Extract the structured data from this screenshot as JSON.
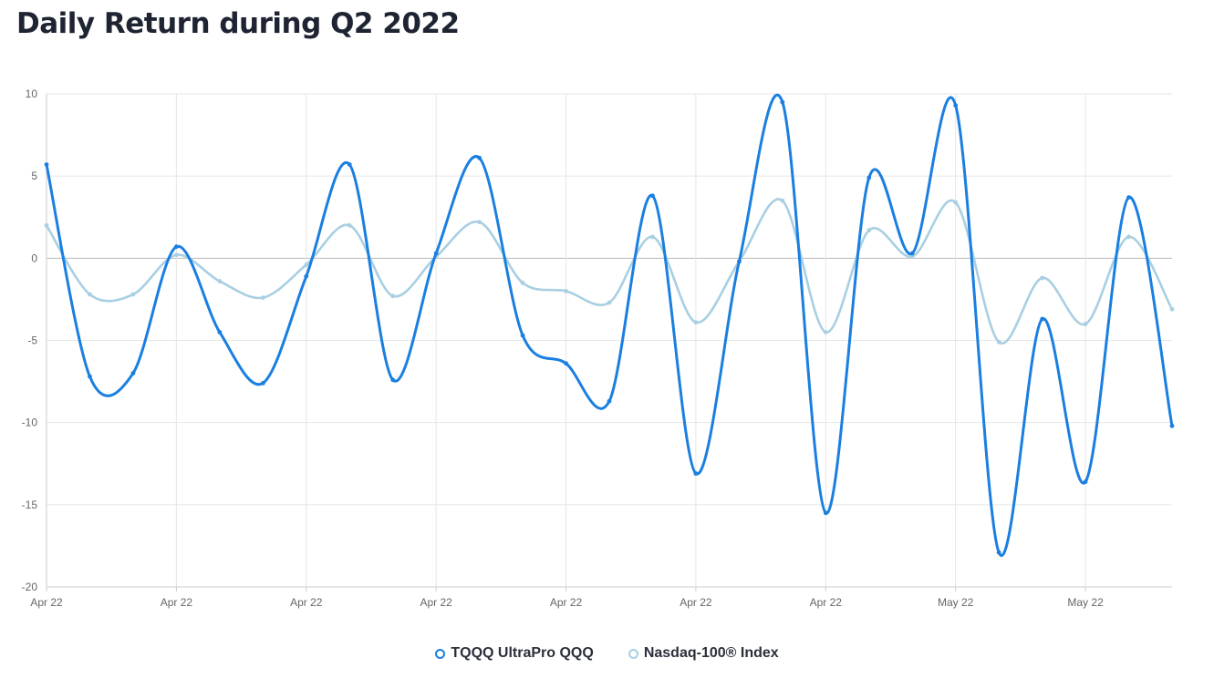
{
  "page": {
    "title": "Daily Return during Q2 2022"
  },
  "legend": {
    "items": [
      {
        "label": "TQQQ UltraPro QQQ",
        "color": "#1a7fe0"
      },
      {
        "label": "Nasdaq-100® Index",
        "color": "#a8cfe2"
      }
    ]
  },
  "chart_data": {
    "type": "line",
    "title": "Daily Return during Q2 2022",
    "xlabel": "",
    "ylabel": "",
    "ylim": [
      -20,
      10
    ],
    "yticks": [
      10,
      5,
      0,
      -5,
      -10,
      -15,
      -20
    ],
    "x_tick_labels": [
      "Apr 22",
      "Apr 22",
      "Apr 22",
      "Apr 22",
      "Apr 22",
      "Apr 22",
      "Apr 22",
      "May 22",
      "May 22"
    ],
    "x_tick_every": 3,
    "grid": true,
    "legend_position": "bottom",
    "series": [
      {
        "name": "TQQQ UltraPro QQQ",
        "color": "#1a7fe0",
        "values": [
          5.7,
          -7.2,
          -7.0,
          0.7,
          -4.5,
          -7.6,
          -1.1,
          5.7,
          -7.4,
          0.3,
          6.1,
          -4.7,
          -6.4,
          -8.7,
          3.8,
          -13.1,
          -0.2,
          9.5,
          -15.5,
          4.9,
          0.3,
          9.3,
          -17.9,
          -3.7,
          -13.6,
          3.7,
          -10.2
        ]
      },
      {
        "name": "Nasdaq-100® Index",
        "color": "#a8cfe2",
        "values": [
          2.0,
          -2.2,
          -2.2,
          0.2,
          -1.4,
          -2.4,
          -0.4,
          2.0,
          -2.3,
          0.1,
          2.2,
          -1.5,
          -2.0,
          -2.7,
          1.3,
          -3.9,
          -0.2,
          3.5,
          -4.5,
          1.7,
          0.1,
          3.4,
          -5.1,
          -1.2,
          -4.0,
          1.3,
          -3.1
        ]
      }
    ]
  }
}
